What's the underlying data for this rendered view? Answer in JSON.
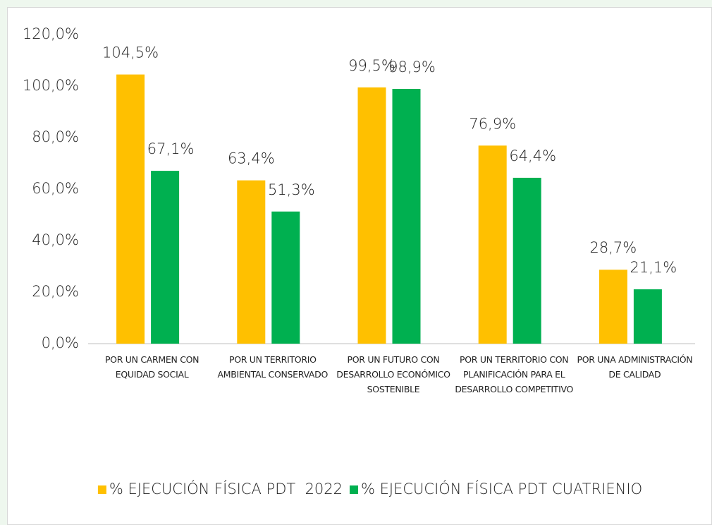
{
  "chart_data": {
    "type": "bar",
    "categories": [
      "POR UN CARMEN CON EQUIDAD SOCIAL",
      "POR UN TERRITORIO AMBIENTAL CONSERVADO",
      "POR UN FUTURO CON DESARROLLO ECONÓMICO SOSTENIBLE",
      "POR UN TERRITORIO CON PLANIFICACIÓN PARA EL DESARROLLO COMPETITIVO",
      "POR UNA ADMINISTRACIÓN DE CALIDAD"
    ],
    "series": [
      {
        "name": "% EJECUCIÓN FÍSICA PDT  2022",
        "color": "#FFC000",
        "values": [
          104.5,
          63.4,
          99.5,
          76.9,
          28.7
        ],
        "value_labels": [
          "104,5%",
          "63,4%",
          "99,5%",
          "76,9%",
          "28,7%"
        ]
      },
      {
        "name": "% EJECUCIÓN FÍSICA PDT CUATRIENIO",
        "color": "#00B050",
        "values": [
          67.1,
          51.3,
          98.9,
          64.4,
          21.1
        ],
        "value_labels": [
          "67,1%",
          "51,3%",
          "98,9%",
          "64,4%",
          "21,1%"
        ]
      }
    ],
    "ylim": [
      0,
      120
    ],
    "yticks": [
      {
        "value": 0,
        "label": "0,0%"
      },
      {
        "value": 20,
        "label": "20,0%"
      },
      {
        "value": 40,
        "label": "40,0%"
      },
      {
        "value": 60,
        "label": "60,0%"
      },
      {
        "value": 80,
        "label": "80,0%"
      },
      {
        "value": 100,
        "label": "100,0%"
      },
      {
        "value": 120,
        "label": "120,0%"
      }
    ],
    "grid": false,
    "legend": "bottom"
  }
}
